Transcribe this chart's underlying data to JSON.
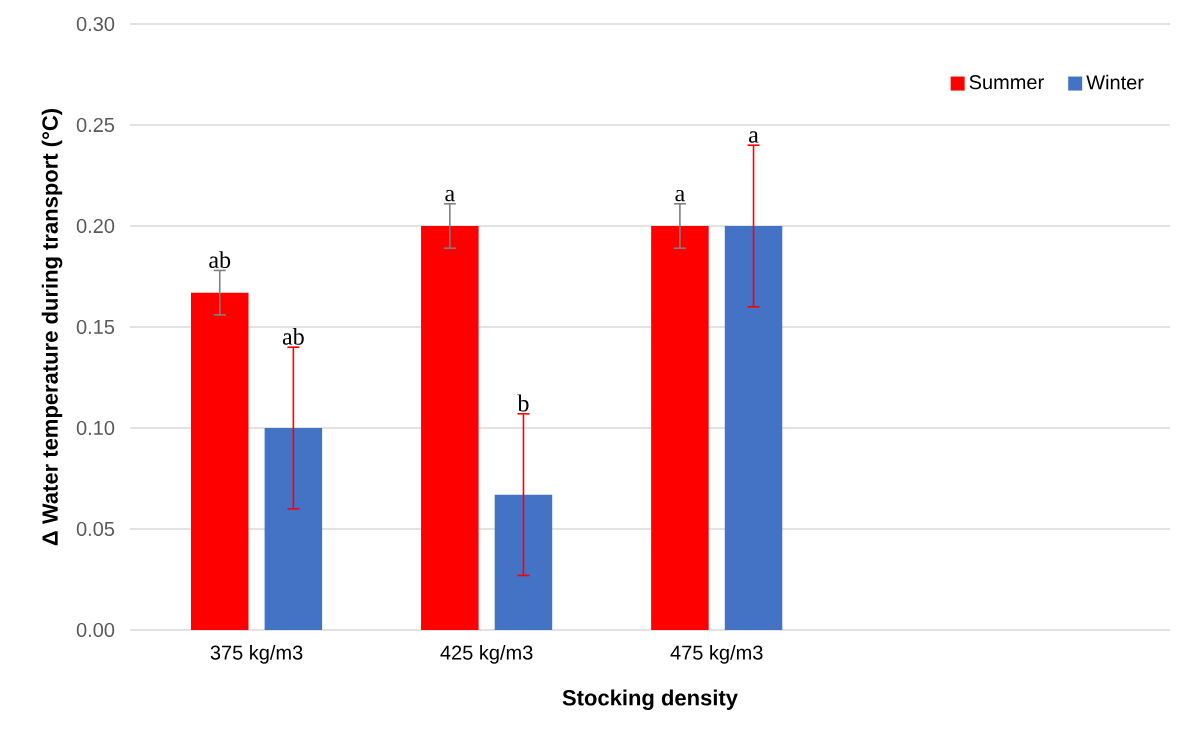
{
  "chart_data": {
    "type": "bar",
    "xlabel": "Stocking density",
    "ylabel": "Δ Water temperature during transport (°C)",
    "categories": [
      "375 kg/m3",
      "425 kg/m3",
      "475 kg/m3"
    ],
    "series": [
      {
        "name": "Summer",
        "color": "#ff0000",
        "values": [
          0.167,
          0.2,
          0.2
        ],
        "errors": [
          0.011,
          0.011,
          0.011
        ]
      },
      {
        "name": "Winter",
        "color": "#4472c4",
        "values": [
          0.1,
          0.067,
          0.2
        ],
        "errors": [
          0.04,
          0.04,
          0.04
        ]
      }
    ],
    "ylim": [
      0,
      0.3
    ],
    "yticks": [
      {
        "value": 0,
        "label": "0.00"
      },
      {
        "value": 0.05,
        "label": "0.05"
      },
      {
        "value": 0.1,
        "label": "0.10"
      },
      {
        "value": 0.15,
        "label": "0.15"
      },
      {
        "value": 0.2,
        "label": "0.20"
      },
      {
        "value": 0.25,
        "label": "0.25"
      },
      {
        "value": 0.3,
        "label": "0.30"
      }
    ],
    "grid": "y",
    "legend": "top right",
    "annotations": [
      "ab",
      "ab",
      "a",
      "b",
      "a",
      "a"
    ]
  }
}
